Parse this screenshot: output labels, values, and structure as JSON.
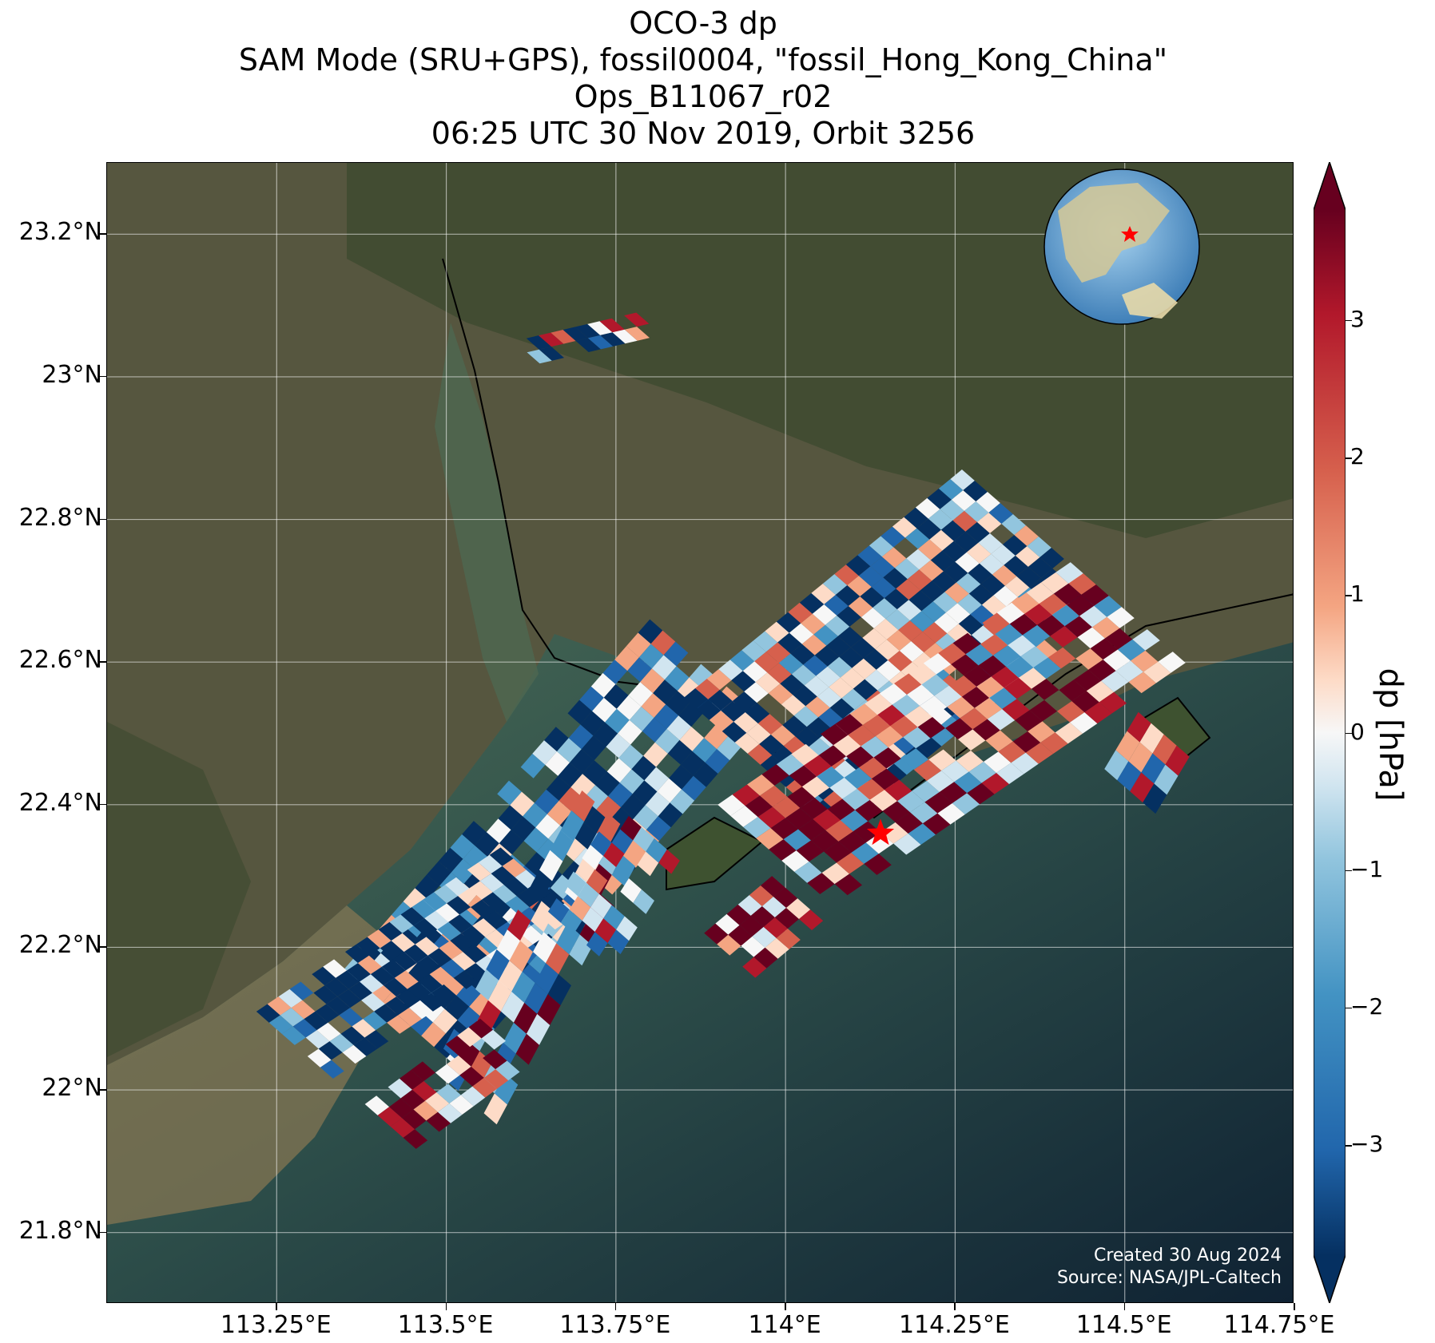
{
  "title": {
    "line1": "OCO-3 dp",
    "line2": "SAM Mode (SRU+GPS), fossil0004, \"fossil_Hong_Kong_China\"",
    "line3": "Ops_B11067_r02",
    "line4": "06:25 UTC 30 Nov 2019, Orbit 3256"
  },
  "map": {
    "lon_range": [
      113.0,
      114.75
    ],
    "lat_range": [
      21.7,
      23.3
    ],
    "lat_ticks": [
      "23.2°N",
      "23°N",
      "22.8°N",
      "22.6°N",
      "22.4°N",
      "22.2°N",
      "22°N",
      "21.8°N"
    ],
    "lon_ticks": [
      "113.25°E",
      "113.5°E",
      "113.75°E",
      "114°E",
      "114.25°E",
      "114.5°E",
      "114.75°E"
    ],
    "target_marker": {
      "lon": 114.14,
      "lat": 22.36,
      "color": "#ff0000"
    },
    "colors": {
      "land": "#5b5a45",
      "water_near": "#3f5b4c",
      "water_far": "#122638",
      "sediment": "#7a6a4a"
    }
  },
  "colorbar": {
    "label": "dp [hPa]",
    "range": [
      -3.8,
      3.8
    ],
    "ticks": [
      "3",
      "2",
      "1",
      "0",
      "−1",
      "−2",
      "−3"
    ],
    "colormap": "RdBu_r"
  },
  "credits": {
    "created": "Created 30 Aug 2024",
    "source": "Source: NASA/JPL-Caltech"
  },
  "inset": {
    "description_icon": "globe-icon",
    "marker_color": "#ff0000"
  }
}
